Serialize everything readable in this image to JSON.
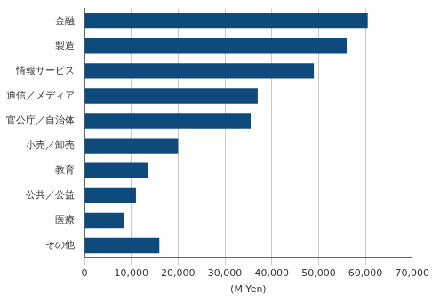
{
  "chart_data": {
    "type": "bar",
    "orientation": "horizontal",
    "categories": [
      "金融",
      "製造",
      "情報サービス",
      "通信／メディア",
      "官公庁／自治体",
      "小売／卸売",
      "教育",
      "公共／公益",
      "医療",
      "その他"
    ],
    "values": [
      60500,
      56000,
      49000,
      37000,
      35500,
      20000,
      13500,
      11000,
      8500,
      16000
    ],
    "color": "#0e4a7b",
    "x_label": "(M Yen)",
    "xlim": [
      0,
      70000
    ],
    "xticks": [
      0,
      {
        "value": 10000,
        "label": "10,000"
      },
      {
        "value": 20000,
        "label": "20,000"
      },
      {
        "value": 30000,
        "label": "30,000"
      },
      {
        "value": 40000,
        "label": "40,000"
      },
      {
        "value": 50000,
        "label": "50,000"
      },
      {
        "value": 60000,
        "label": "60,000"
      },
      {
        "value": 70000,
        "label": "70,000"
      }
    ],
    "grid": true
  }
}
